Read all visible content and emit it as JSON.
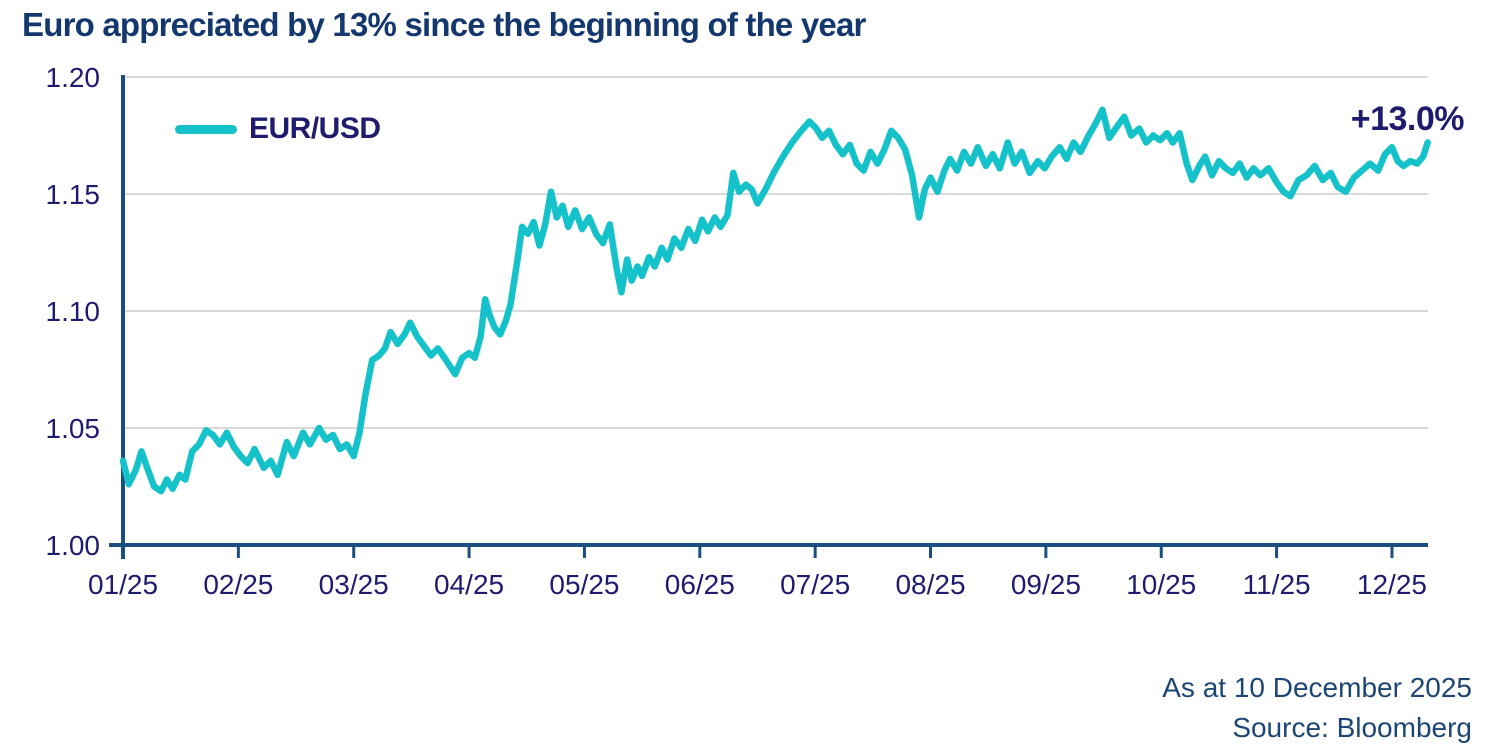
{
  "title": "Euro appreciated by 13% since the beginning of the year",
  "legend": {
    "label": "EUR/USD"
  },
  "annotation": "+13.0%",
  "footnote": {
    "line1": "As at 10 December 2025",
    "line2": "Source: Bloomberg"
  },
  "colors": {
    "title": "#14386e",
    "accent": "#16c2ca",
    "axis": "#1a4d80",
    "grid": "#d9d9d9",
    "tick_text": "#1f1b6e",
    "footnote_text": "#1d4674"
  },
  "chart_data": {
    "type": "line",
    "title": "Euro appreciated by 13% since the beginning of the year",
    "xlabel": "",
    "ylabel": "",
    "ylim": [
      1.0,
      1.2
    ],
    "grid": "horizontal",
    "legend_position": "top-left",
    "annotation": "+13.0%",
    "as_of": "As at 10 December 2025",
    "source": "Source: Bloomberg",
    "y_ticks": [
      {
        "label": "1.20",
        "value": 1.2
      },
      {
        "label": "1.15",
        "value": 1.15
      },
      {
        "label": "1.10",
        "value": 1.1
      },
      {
        "label": "1.05",
        "value": 1.05
      },
      {
        "label": "1.00",
        "value": 1.0
      }
    ],
    "x_ticks": [
      {
        "label": "01/25",
        "month": 0
      },
      {
        "label": "02/25",
        "month": 1
      },
      {
        "label": "03/25",
        "month": 2
      },
      {
        "label": "04/25",
        "month": 3
      },
      {
        "label": "05/25",
        "month": 4
      },
      {
        "label": "06/25",
        "month": 5
      },
      {
        "label": "07/25",
        "month": 6
      },
      {
        "label": "08/25",
        "month": 7
      },
      {
        "label": "09/25",
        "month": 8
      },
      {
        "label": "10/25",
        "month": 9
      },
      {
        "label": "11/25",
        "month": 10
      },
      {
        "label": "12/25",
        "month": 11
      }
    ],
    "series": [
      {
        "name": "EUR/USD",
        "color": "#16c2ca",
        "points": [
          [
            0.0,
            1.036
          ],
          [
            0.05,
            1.026
          ],
          [
            0.11,
            1.032
          ],
          [
            0.16,
            1.04
          ],
          [
            0.21,
            1.033
          ],
          [
            0.27,
            1.025
          ],
          [
            0.33,
            1.023
          ],
          [
            0.38,
            1.028
          ],
          [
            0.43,
            1.024
          ],
          [
            0.49,
            1.03
          ],
          [
            0.54,
            1.028
          ],
          [
            0.6,
            1.04
          ],
          [
            0.66,
            1.043
          ],
          [
            0.72,
            1.049
          ],
          [
            0.78,
            1.047
          ],
          [
            0.84,
            1.043
          ],
          [
            0.9,
            1.048
          ],
          [
            0.96,
            1.042
          ],
          [
            1.02,
            1.038
          ],
          [
            1.08,
            1.035
          ],
          [
            1.14,
            1.041
          ],
          [
            1.22,
            1.033
          ],
          [
            1.28,
            1.036
          ],
          [
            1.34,
            1.03
          ],
          [
            1.42,
            1.044
          ],
          [
            1.48,
            1.038
          ],
          [
            1.56,
            1.048
          ],
          [
            1.62,
            1.043
          ],
          [
            1.7,
            1.05
          ],
          [
            1.76,
            1.045
          ],
          [
            1.82,
            1.047
          ],
          [
            1.88,
            1.041
          ],
          [
            1.94,
            1.043
          ],
          [
            2.0,
            1.038
          ],
          [
            2.05,
            1.048
          ],
          [
            2.1,
            1.064
          ],
          [
            2.16,
            1.079
          ],
          [
            2.22,
            1.081
          ],
          [
            2.27,
            1.084
          ],
          [
            2.32,
            1.091
          ],
          [
            2.38,
            1.086
          ],
          [
            2.44,
            1.09
          ],
          [
            2.49,
            1.095
          ],
          [
            2.55,
            1.089
          ],
          [
            2.61,
            1.085
          ],
          [
            2.67,
            1.081
          ],
          [
            2.73,
            1.084
          ],
          [
            2.8,
            1.079
          ],
          [
            2.84,
            1.076
          ],
          [
            2.88,
            1.073
          ],
          [
            2.94,
            1.08
          ],
          [
            3.0,
            1.082
          ],
          [
            3.05,
            1.08
          ],
          [
            3.1,
            1.089
          ],
          [
            3.14,
            1.105
          ],
          [
            3.18,
            1.098
          ],
          [
            3.22,
            1.093
          ],
          [
            3.27,
            1.09
          ],
          [
            3.32,
            1.096
          ],
          [
            3.36,
            1.103
          ],
          [
            3.42,
            1.122
          ],
          [
            3.46,
            1.136
          ],
          [
            3.51,
            1.133
          ],
          [
            3.56,
            1.138
          ],
          [
            3.61,
            1.128
          ],
          [
            3.66,
            1.137
          ],
          [
            3.71,
            1.151
          ],
          [
            3.76,
            1.14
          ],
          [
            3.81,
            1.145
          ],
          [
            3.86,
            1.136
          ],
          [
            3.92,
            1.143
          ],
          [
            3.98,
            1.135
          ],
          [
            4.04,
            1.14
          ],
          [
            4.1,
            1.133
          ],
          [
            4.16,
            1.129
          ],
          [
            4.22,
            1.137
          ],
          [
            4.28,
            1.118
          ],
          [
            4.32,
            1.108
          ],
          [
            4.37,
            1.122
          ],
          [
            4.41,
            1.113
          ],
          [
            4.46,
            1.119
          ],
          [
            4.5,
            1.115
          ],
          [
            4.56,
            1.123
          ],
          [
            4.61,
            1.119
          ],
          [
            4.67,
            1.127
          ],
          [
            4.72,
            1.122
          ],
          [
            4.78,
            1.131
          ],
          [
            4.84,
            1.127
          ],
          [
            4.9,
            1.135
          ],
          [
            4.96,
            1.13
          ],
          [
            5.02,
            1.139
          ],
          [
            5.07,
            1.134
          ],
          [
            5.13,
            1.14
          ],
          [
            5.18,
            1.136
          ],
          [
            5.24,
            1.141
          ],
          [
            5.29,
            1.159
          ],
          [
            5.34,
            1.151
          ],
          [
            5.4,
            1.154
          ],
          [
            5.45,
            1.152
          ],
          [
            5.5,
            1.146
          ],
          [
            5.57,
            1.152
          ],
          [
            5.64,
            1.159
          ],
          [
            5.72,
            1.166
          ],
          [
            5.8,
            1.172
          ],
          [
            5.88,
            1.177
          ],
          [
            5.95,
            1.181
          ],
          [
            6.01,
            1.178
          ],
          [
            6.06,
            1.174
          ],
          [
            6.12,
            1.177
          ],
          [
            6.18,
            1.171
          ],
          [
            6.24,
            1.167
          ],
          [
            6.3,
            1.171
          ],
          [
            6.36,
            1.163
          ],
          [
            6.42,
            1.16
          ],
          [
            6.48,
            1.168
          ],
          [
            6.54,
            1.163
          ],
          [
            6.6,
            1.169
          ],
          [
            6.66,
            1.177
          ],
          [
            6.72,
            1.174
          ],
          [
            6.78,
            1.169
          ],
          [
            6.84,
            1.158
          ],
          [
            6.9,
            1.14
          ],
          [
            6.95,
            1.152
          ],
          [
            7.0,
            1.157
          ],
          [
            7.06,
            1.151
          ],
          [
            7.12,
            1.16
          ],
          [
            7.17,
            1.165
          ],
          [
            7.23,
            1.16
          ],
          [
            7.29,
            1.168
          ],
          [
            7.35,
            1.163
          ],
          [
            7.41,
            1.17
          ],
          [
            7.48,
            1.162
          ],
          [
            7.54,
            1.167
          ],
          [
            7.6,
            1.161
          ],
          [
            7.67,
            1.172
          ],
          [
            7.73,
            1.163
          ],
          [
            7.79,
            1.168
          ],
          [
            7.86,
            1.159
          ],
          [
            7.93,
            1.164
          ],
          [
            7.99,
            1.161
          ],
          [
            8.05,
            1.166
          ],
          [
            8.12,
            1.17
          ],
          [
            8.18,
            1.165
          ],
          [
            8.24,
            1.172
          ],
          [
            8.3,
            1.168
          ],
          [
            8.37,
            1.175
          ],
          [
            8.43,
            1.18
          ],
          [
            8.49,
            1.186
          ],
          [
            8.55,
            1.174
          ],
          [
            8.62,
            1.179
          ],
          [
            8.68,
            1.183
          ],
          [
            8.74,
            1.175
          ],
          [
            8.81,
            1.178
          ],
          [
            8.87,
            1.172
          ],
          [
            8.93,
            1.175
          ],
          [
            8.99,
            1.173
          ],
          [
            9.05,
            1.176
          ],
          [
            9.1,
            1.172
          ],
          [
            9.16,
            1.176
          ],
          [
            9.22,
            1.163
          ],
          [
            9.27,
            1.156
          ],
          [
            9.33,
            1.162
          ],
          [
            9.38,
            1.166
          ],
          [
            9.44,
            1.158
          ],
          [
            9.5,
            1.164
          ],
          [
            9.56,
            1.161
          ],
          [
            9.62,
            1.159
          ],
          [
            9.68,
            1.163
          ],
          [
            9.74,
            1.157
          ],
          [
            9.8,
            1.161
          ],
          [
            9.86,
            1.158
          ],
          [
            9.93,
            1.161
          ],
          [
            10.0,
            1.155
          ],
          [
            10.06,
            1.151
          ],
          [
            10.12,
            1.149
          ],
          [
            10.19,
            1.156
          ],
          [
            10.26,
            1.158
          ],
          [
            10.33,
            1.162
          ],
          [
            10.4,
            1.156
          ],
          [
            10.47,
            1.159
          ],
          [
            10.53,
            1.153
          ],
          [
            10.6,
            1.151
          ],
          [
            10.67,
            1.157
          ],
          [
            10.74,
            1.16
          ],
          [
            10.81,
            1.163
          ],
          [
            10.88,
            1.16
          ],
          [
            10.94,
            1.167
          ],
          [
            11.0,
            1.17
          ],
          [
            11.05,
            1.164
          ],
          [
            11.1,
            1.162
          ],
          [
            11.16,
            1.164
          ],
          [
            11.22,
            1.163
          ],
          [
            11.27,
            1.166
          ],
          [
            11.31,
            1.172
          ]
        ]
      }
    ]
  }
}
